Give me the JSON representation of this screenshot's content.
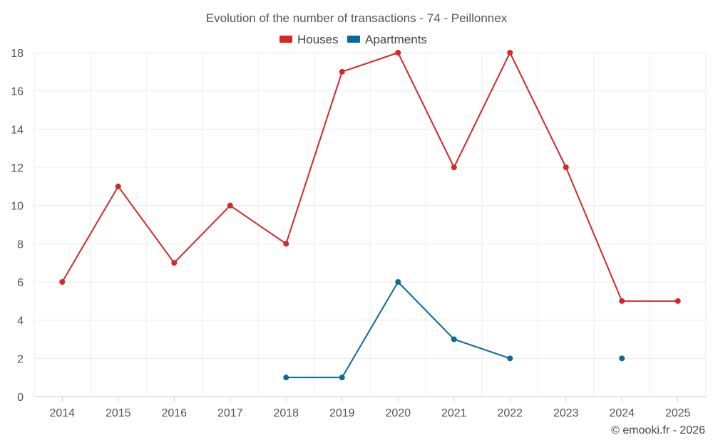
{
  "chart_data": {
    "type": "line",
    "title": "Evolution of the number of transactions - 74 - Peillonnex",
    "categories": [
      "2014",
      "2015",
      "2016",
      "2017",
      "2018",
      "2019",
      "2020",
      "2021",
      "2022",
      "2023",
      "2024",
      "2025"
    ],
    "series": [
      {
        "name": "Houses",
        "color": "#d62728",
        "values": [
          6,
          11,
          7,
          10,
          8,
          17,
          18,
          12,
          18,
          12,
          5,
          5
        ]
      },
      {
        "name": "Apartments",
        "color": "#0b6a9c",
        "values": [
          null,
          null,
          null,
          null,
          1,
          1,
          6,
          3,
          2,
          null,
          2,
          null
        ]
      }
    ],
    "ylim": [
      0,
      18
    ],
    "yticks": [
      0,
      2,
      4,
      6,
      8,
      10,
      12,
      14,
      16,
      18
    ],
    "xlabel": "",
    "ylabel": "",
    "grid": true,
    "legend_position": "top-center",
    "copyright": "© emooki.fr - 2026"
  }
}
